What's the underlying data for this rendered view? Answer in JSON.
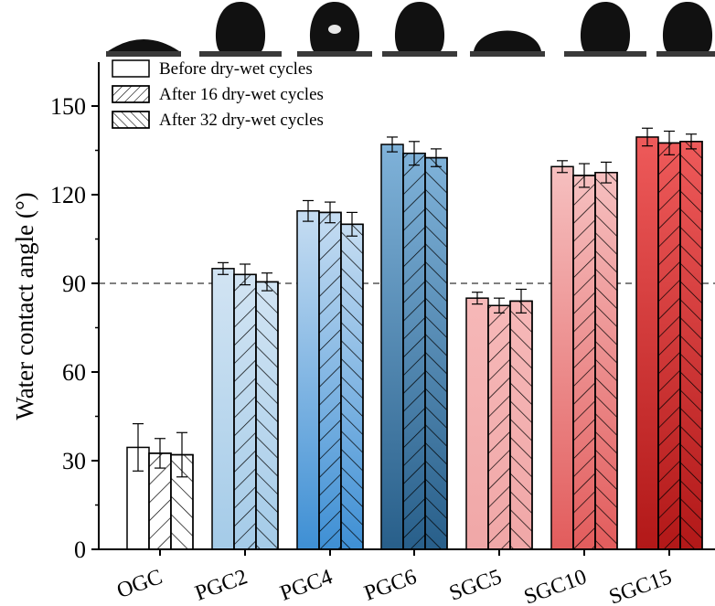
{
  "chart_data": {
    "type": "bar",
    "ylabel": "Water contact angle (°)",
    "xlabel": "",
    "ylim": [
      0,
      165
    ],
    "yticks": [
      0,
      30,
      60,
      90,
      120,
      150
    ],
    "reference_line": {
      "y": 90,
      "style": "dashed",
      "color": "#808080"
    },
    "legend_position": "top-left",
    "categories": [
      "OGC",
      "PGC2",
      "PGC4",
      "PGC6",
      "SGC5",
      "SGC10",
      "SGC15"
    ],
    "series": [
      {
        "name": "Before dry-wet cycles",
        "hatch": "none",
        "values": [
          34.5,
          95,
          114.5,
          137,
          85,
          129.5,
          139.5
        ],
        "errors": [
          8,
          2,
          3.5,
          2.5,
          2,
          2,
          3
        ]
      },
      {
        "name": "After 16 dry-wet cycles",
        "hatch": "forward-diagonal",
        "values": [
          32.5,
          93,
          114,
          134,
          82.5,
          126.5,
          137.5
        ],
        "errors": [
          5,
          3.5,
          3.5,
          4,
          2.5,
          4,
          4
        ]
      },
      {
        "name": "After 32 dry-wet cycles",
        "hatch": "back-diagonal",
        "values": [
          32,
          90.5,
          110,
          132.5,
          84,
          127.5,
          138
        ],
        "errors": [
          7.5,
          3,
          4,
          3,
          4,
          3.5,
          2.5
        ]
      }
    ],
    "group_colors": [
      {
        "top": "#ffffff",
        "bottom": "#ffffff"
      },
      {
        "top": "#d2e4f3",
        "bottom": "#a4cbe8"
      },
      {
        "top": "#c6ddf2",
        "bottom": "#3e8fd4"
      },
      {
        "top": "#7fb2d9",
        "bottom": "#285f8a"
      },
      {
        "top": "#f6b8b8",
        "bottom": "#f0a7a7"
      },
      {
        "top": "#f6c0c0",
        "bottom": "#e25c5c"
      },
      {
        "top": "#ee5a5a",
        "bottom": "#b21818"
      }
    ],
    "droplet_images": [
      {
        "category": "OGC",
        "shape": "flat-spread-droplet"
      },
      {
        "category": "PGC2",
        "shape": "near-hemisphere-droplet"
      },
      {
        "category": "PGC4",
        "shape": "rounded-droplet-with-highlight"
      },
      {
        "category": "PGC6",
        "shape": "tall-round-droplet"
      },
      {
        "category": "SGC5",
        "shape": "low-dome-droplet"
      },
      {
        "category": "SGC10",
        "shape": "tall-round-droplet"
      },
      {
        "category": "SGC15",
        "shape": "tall-round-droplet"
      }
    ]
  }
}
